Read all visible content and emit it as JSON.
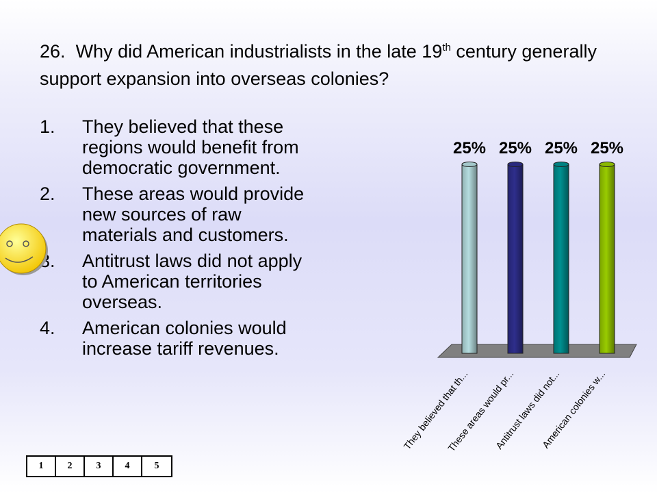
{
  "question": {
    "number": "26.",
    "text_before": "Why did American industrialists in the late 19",
    "superscript": "th",
    "text_after": " century generally support expansion into overseas colonies?"
  },
  "answers": [
    {
      "number": "1.",
      "text": "They believed that these regions would benefit from democratic government."
    },
    {
      "number": "2.",
      "text": "These areas would provide new sources of raw materials and customers."
    },
    {
      "number": "3.",
      "text": "Antitrust laws did not apply to American territories overseas."
    },
    {
      "number": "4.",
      "text": "American colonies would increase tariff revenues."
    }
  ],
  "keypad": [
    "1",
    "2",
    "3",
    "4",
    "5"
  ],
  "chart_data": {
    "type": "bar",
    "categories": [
      "They believed that th...",
      "These areas would pr...",
      "Antitrust laws did not...",
      "American colonies w..."
    ],
    "values": [
      25,
      25,
      25,
      25
    ],
    "value_labels": [
      "25%",
      "25%",
      "25%",
      "25%"
    ],
    "ylim": [
      0,
      25
    ],
    "colors": [
      "#b5dde0",
      "#2e2e8c",
      "#009090",
      "#99cc00"
    ],
    "floor_color": "#808080",
    "grid": false,
    "legend": "none"
  }
}
